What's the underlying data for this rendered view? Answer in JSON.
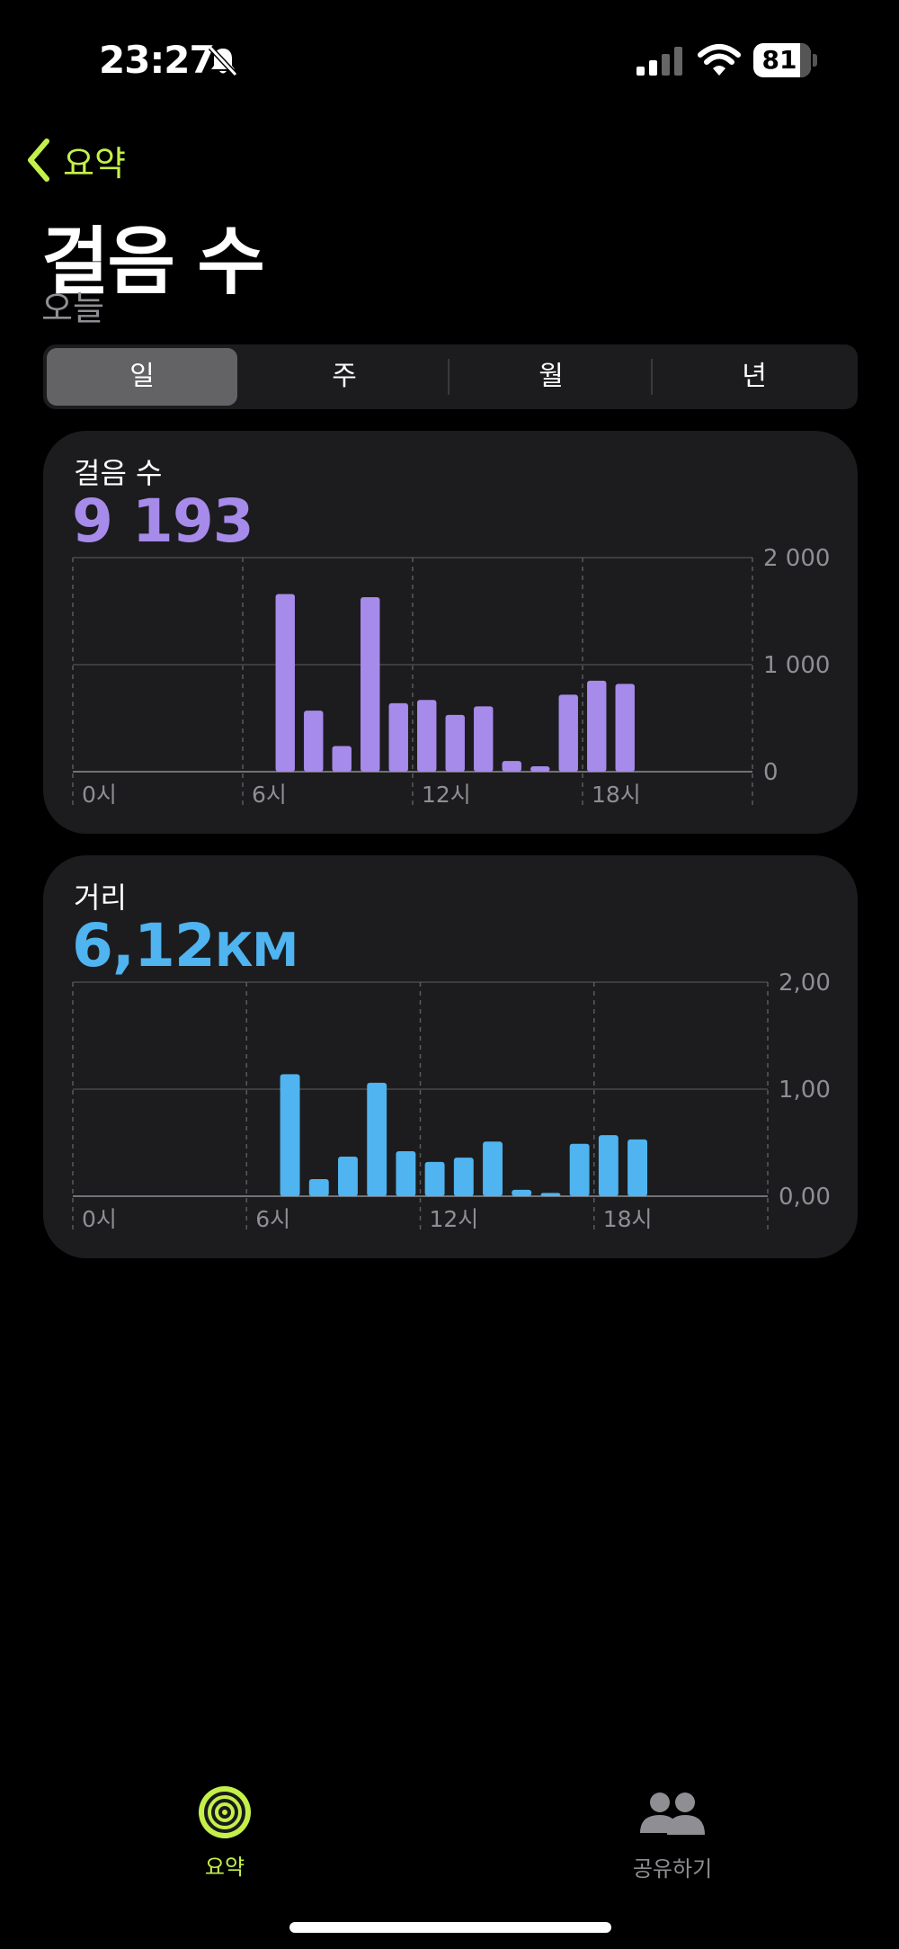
{
  "status_bar": {
    "time": "23:27",
    "battery": "81",
    "battery_level": 0.81
  },
  "nav": {
    "back_label": "요약",
    "title": "걸음 수",
    "subtitle": "오늘"
  },
  "segmented": {
    "options": [
      "일",
      "주",
      "월",
      "년"
    ],
    "selected": "일"
  },
  "colors": {
    "accent": "#c4f04a",
    "steps": "#a68bea",
    "distance": "#4fb4ef",
    "card": "#1c1c1e"
  },
  "steps_card": {
    "label": "걸음 수",
    "value": "9 193"
  },
  "distance_card": {
    "label": "거리",
    "value": "6,12",
    "unit": "КМ"
  },
  "chart_data": [
    {
      "type": "bar",
      "title": "걸음 수",
      "x_tick_labels": [
        "0시",
        "6시",
        "12시",
        "18시"
      ],
      "y_tick_labels": [
        "2 000",
        "1 000",
        "0"
      ],
      "ylim": [
        0,
        2000
      ],
      "grid": true,
      "hours": [
        7,
        8,
        9,
        10,
        11,
        12,
        13,
        14,
        15,
        16,
        17,
        18,
        19
      ],
      "values": [
        1660,
        570,
        240,
        1630,
        640,
        670,
        530,
        610,
        100,
        50,
        720,
        850,
        820
      ]
    },
    {
      "type": "bar",
      "title": "거리",
      "x_tick_labels": [
        "0시",
        "6시",
        "12시",
        "18시"
      ],
      "y_tick_labels": [
        "2,00",
        "1,00",
        "0,00"
      ],
      "ylim": [
        0,
        2.0
      ],
      "grid": true,
      "hours": [
        7,
        8,
        9,
        10,
        11,
        12,
        13,
        14,
        15,
        16,
        17,
        18,
        19
      ],
      "values": [
        1.14,
        0.16,
        0.37,
        1.06,
        0.42,
        0.32,
        0.36,
        0.51,
        0.06,
        0.03,
        0.49,
        0.57,
        0.53
      ]
    }
  ],
  "tab_bar": {
    "items": [
      {
        "label": "요약",
        "icon": "activity-rings-icon",
        "active": true
      },
      {
        "label": "공유하기",
        "icon": "people-icon",
        "active": false
      }
    ]
  }
}
